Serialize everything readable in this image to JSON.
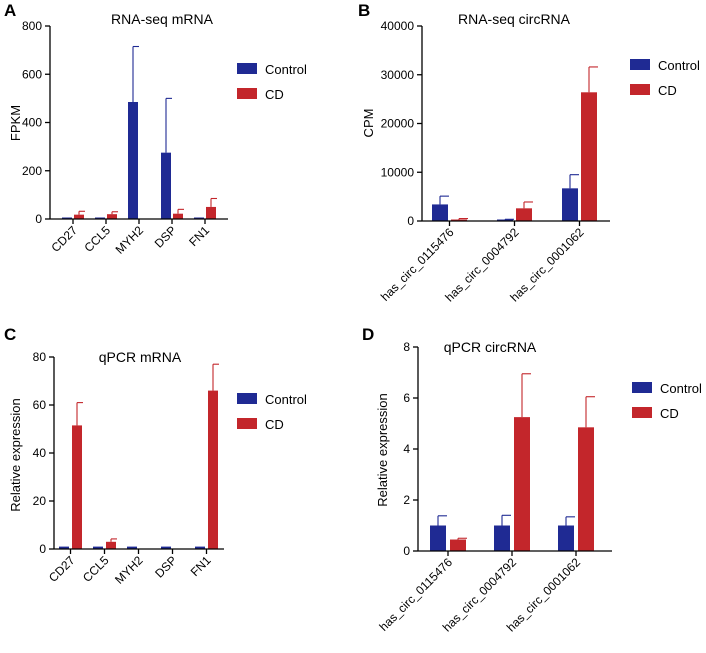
{
  "colors": {
    "control": "#1f2a93",
    "cd": "#c3262b"
  },
  "legend": {
    "series_a": "Control",
    "series_b": "CD"
  },
  "chart_data": [
    {
      "panel": "A",
      "type": "bar",
      "title": "RNA-seq mRNA",
      "xlabel": "",
      "ylabel": "FPKM",
      "categories": [
        "CD27",
        "CCL5",
        "MYH2",
        "DSP",
        "FN1"
      ],
      "yticks": [
        "0",
        "200",
        "400",
        "600",
        "800"
      ],
      "ylim": [
        0,
        800
      ],
      "series": [
        {
          "name": "Control",
          "values": [
            1,
            3,
            485,
            275,
            4
          ],
          "errors": [
            0,
            0,
            230,
            225,
            0
          ]
        },
        {
          "name": "CD",
          "values": [
            18,
            20,
            0,
            22,
            50
          ],
          "errors": [
            14,
            10,
            0,
            18,
            35
          ]
        }
      ]
    },
    {
      "panel": "B",
      "type": "bar",
      "title": "RNA-seq circRNA",
      "xlabel": "",
      "ylabel": "CPM",
      "categories": [
        "has_circ_0115476",
        "has_circ_0004792",
        "has_circ_0001062"
      ],
      "yticks": [
        "0",
        "10000",
        "20000",
        "30000",
        "40000"
      ],
      "ylim": [
        0,
        40000
      ],
      "series": [
        {
          "name": "Control",
          "values": [
            3400,
            200,
            6700
          ],
          "errors": [
            1700,
            150,
            2800
          ]
        },
        {
          "name": "CD",
          "values": [
            300,
            2600,
            26400
          ],
          "errors": [
            200,
            1300,
            5200
          ]
        }
      ]
    },
    {
      "panel": "C",
      "type": "bar",
      "title": "qPCR mRNA",
      "xlabel": "",
      "ylabel": "Relative expression",
      "categories": [
        "CD27",
        "CCL5",
        "MYH2",
        "DSP",
        "FN1"
      ],
      "yticks": [
        "0",
        "20",
        "40",
        "60",
        "80"
      ],
      "ylim": [
        0,
        80
      ],
      "series": [
        {
          "name": "Control",
          "values": [
            1,
            1,
            1,
            1,
            1
          ],
          "errors": [
            0,
            0,
            0,
            0,
            0
          ]
        },
        {
          "name": "CD",
          "values": [
            51.5,
            3,
            0,
            0,
            66
          ],
          "errors": [
            9.5,
            1.2,
            0,
            0,
            11
          ]
        }
      ]
    },
    {
      "panel": "D",
      "type": "bar",
      "title": "qPCR circRNA",
      "xlabel": "",
      "ylabel": "Relative expression",
      "categories": [
        "has_circ_0115476",
        "has_circ_0004792",
        "has_circ_0001062"
      ],
      "yticks": [
        "0",
        "2",
        "4",
        "6",
        "8"
      ],
      "ylim": [
        0,
        8
      ],
      "series": [
        {
          "name": "Control",
          "values": [
            1.0,
            1.0,
            1.0
          ],
          "errors": [
            0.38,
            0.4,
            0.34
          ]
        },
        {
          "name": "CD",
          "values": [
            0.45,
            5.25,
            4.85
          ],
          "errors": [
            0.05,
            1.7,
            1.2
          ]
        }
      ]
    }
  ]
}
